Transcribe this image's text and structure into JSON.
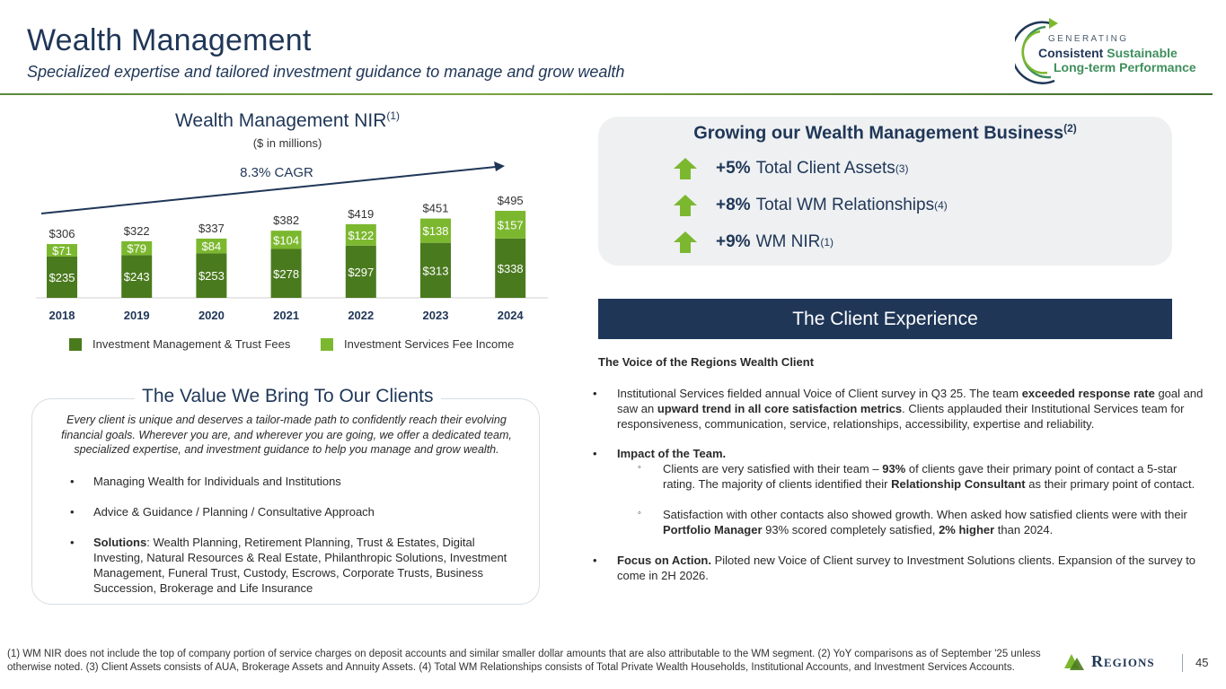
{
  "header": {
    "title": "Wealth Management",
    "subtitle": "Specialized expertise and tailored investment guidance to manage and grow wealth",
    "logo": {
      "line1": "GENERATING",
      "line2a": "Consistent",
      "line2b": "Sustainable",
      "line3": "Long-term Performance"
    }
  },
  "chart": {
    "title": "Wealth Management NIR",
    "title_sup": "(1)",
    "units": "($ in millions)",
    "cagr": "8.3% CAGR"
  },
  "chart_data": {
    "type": "bar",
    "stacked": true,
    "title": "Wealth Management NIR(1)",
    "ylabel": "$ in millions",
    "categories": [
      "2018",
      "2019",
      "2020",
      "2021",
      "2022",
      "2023",
      "2024"
    ],
    "series": [
      {
        "name": "Investment Management & Trust Fees",
        "values": [
          235,
          243,
          253,
          278,
          297,
          313,
          338
        ],
        "labels": [
          "$235",
          "$243",
          "$253",
          "$278",
          "$297",
          "$313",
          "$338"
        ],
        "color": "#4a7a1e"
      },
      {
        "name": "Investment Services Fee Income",
        "values": [
          71,
          79,
          84,
          104,
          122,
          138,
          157
        ],
        "labels": [
          "$71",
          "$79",
          "$84",
          "$104",
          "$122",
          "$138",
          "$157"
        ],
        "color": "#7cb82f"
      }
    ],
    "totals": [
      306,
      322,
      337,
      382,
      419,
      451,
      495
    ],
    "total_labels": [
      "$306",
      "$322",
      "$337",
      "$382",
      "$419",
      "$451",
      "$495"
    ],
    "annotation": "8.3% CAGR",
    "ylim": [
      0,
      500
    ],
    "legend_position": "bottom"
  },
  "legend": {
    "item1": "Investment Management & Trust Fees",
    "item2": "Investment Services Fee Income",
    "color1": "#4a7a1e",
    "color2": "#7cb82f"
  },
  "value": {
    "heading": "The Value We Bring To Our Clients",
    "intro": "Every client is unique and deserves a tailor-made path to confidently reach their evolving financial goals. Wherever you are, and wherever you are going, we offer a dedicated team, specialized expertise, and investment guidance to help you manage and grow wealth.",
    "bullet_symbol": "•",
    "bullet1": "Managing Wealth for Individuals and Institutions",
    "bullet2": "Advice & Guidance  /  Planning  /  Consultative Approach",
    "bullet3_bold": "Solutions",
    "bullet3_rest": ": Wealth Planning, Retirement Planning, Trust & Estates, Digital Investing, Natural Resources & Real Estate, Philanthropic Solutions, Investment Management, Funeral Trust, Custody, Escrows, Corporate Trusts, Business Succession, Brokerage and Life Insurance"
  },
  "growing": {
    "heading": "Growing our Wealth Management Business",
    "heading_sup": "(2)",
    "rows": [
      {
        "value": "+5%",
        "label": "Total Client Assets",
        "sup": "(3)"
      },
      {
        "value": "+8%",
        "label": "Total WM Relationships",
        "sup": "(4)"
      },
      {
        "value": "+9%",
        "label": "WM NIR",
        "sup": "(1)"
      }
    ],
    "arrow_color": "#7cb82f"
  },
  "client_experience": {
    "banner": "The Client Experience",
    "voice_heading": "The Voice of the Regions Wealth Client",
    "bullet_symbol": "•",
    "sub_symbol": "◦",
    "p1_a": "Institutional Services fielded annual Voice of Client survey in Q3 25. The team ",
    "p1_b": "exceeded response rate",
    "p1_c": " goal and saw an ",
    "p1_d": "upward trend in all core satisfaction metrics",
    "p1_e": ". Clients applauded their Institutional Services team for responsiveness, communication, service, relationships, accessibility, expertise and reliability.",
    "p2": "Impact of the Team.",
    "s1_a": "Clients are very satisfied with their team – ",
    "s1_b": "93%",
    "s1_c": " of clients gave their primary point of contact a 5-star rating. The majority of clients identified their ",
    "s1_d": "Relationship Consultant",
    "s1_e": " as their primary point of contact.",
    "s2_a": "Satisfaction with other contacts also showed growth. When asked how satisfied clients were with their ",
    "s2_b": "Portfolio Manager",
    "s2_c": " 93% scored completely satisfied, ",
    "s2_d": "2% higher",
    "s2_e": " than 2024.",
    "p3_a": "Focus on Action.",
    "p3_b": " Piloted new Voice of Client survey to Investment Solutions clients. Expansion of the survey to come in 2H 2026."
  },
  "footer": {
    "footnote": "(1) WM NIR does not include the top of company portion of service charges on deposit accounts and similar smaller dollar amounts that are also attributable to the WM segment. (2) YoY comparisons as of September '25 unless otherwise noted. (3) Client Assets consists of AUA, Brokerage Assets and Annuity Assets. (4) Total WM Relationships consists of Total Private Wealth Households, Institutional Accounts, and Investment Services Accounts.",
    "brand": "Regions",
    "page": "45"
  }
}
